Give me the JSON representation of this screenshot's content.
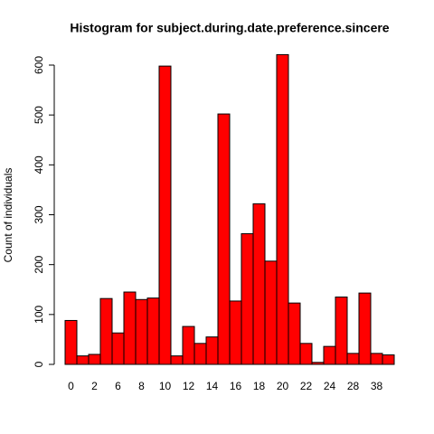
{
  "chart_data": {
    "type": "bar",
    "title": "Histogram for subject.during.date.preference.sincere",
    "y_label": "Count of individuals",
    "categories": [
      "0",
      null,
      "2",
      null,
      "6",
      null,
      "8",
      null,
      "10",
      null,
      "12",
      null,
      "14",
      null,
      "16",
      null,
      "18",
      null,
      "20",
      null,
      "22",
      null,
      "24",
      null,
      "28",
      null,
      "38",
      null
    ],
    "values": [
      88,
      17,
      20,
      132,
      63,
      145,
      130,
      133,
      598,
      17,
      76,
      42,
      55,
      502,
      127,
      262,
      322,
      207,
      621,
      123,
      42,
      4,
      36,
      135,
      22,
      143,
      22,
      19
    ],
    "color": "#ff0000",
    "ylim": [
      0,
      600
    ],
    "yticks": [
      0,
      100,
      200,
      300,
      400,
      500,
      600
    ]
  }
}
